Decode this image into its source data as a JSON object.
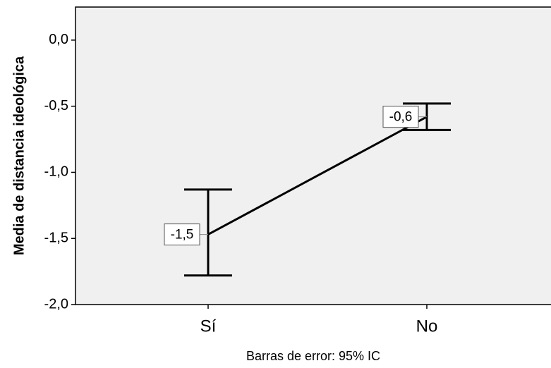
{
  "chart_data": {
    "type": "line",
    "y_label": "Media de distancia ideológica",
    "x_label": "Barras de error: 95% IC",
    "categories": [
      "Sí",
      "No"
    ],
    "values": [
      -1.47,
      -0.58
    ],
    "value_labels": [
      "-1,5",
      "-0,6"
    ],
    "lower": [
      -1.78,
      -0.68
    ],
    "upper": [
      -1.13,
      -0.48
    ],
    "color": "#000000",
    "ylim": [
      -2.0,
      0.25
    ],
    "yticks": [
      {
        "value": 0,
        "label": "0,0"
      },
      {
        "value": -0.5,
        "label": "-0,5"
      },
      {
        "value": -1.0,
        "label": "-1,0"
      },
      {
        "value": -1.5,
        "label": "-1,5"
      },
      {
        "value": -2.0,
        "label": "-2,0"
      }
    ]
  }
}
